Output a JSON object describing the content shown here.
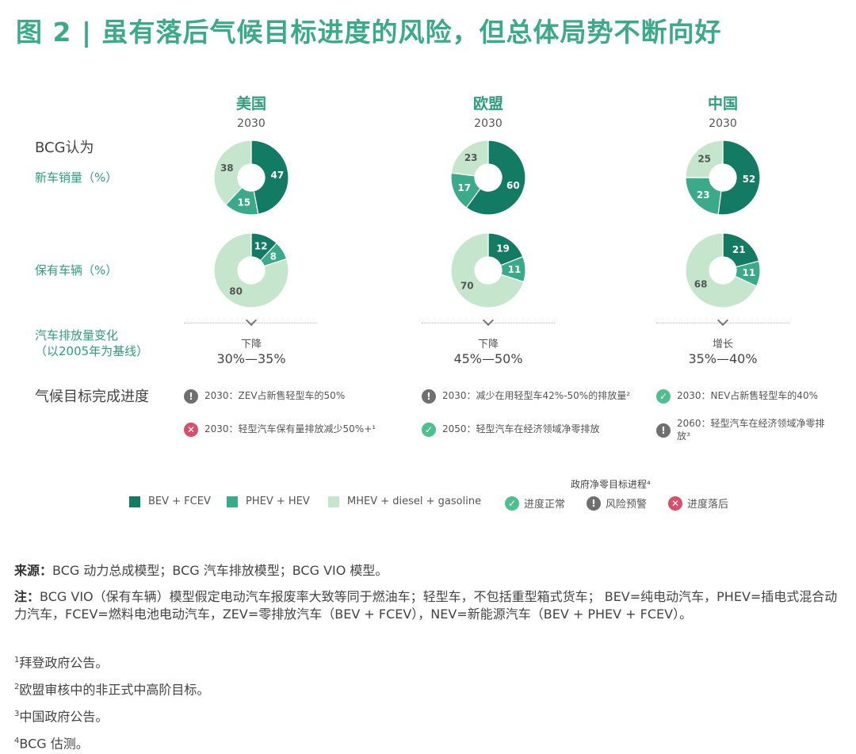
{
  "title": "图 2 | 虽有落后气候目标进度的风险，但总体局势不断向好",
  "bcg_label": "BCG认为",
  "row_labels": {
    "new_sales": "新车销量（%）",
    "stock": "保有车辆（%）",
    "emissions_line1": "汽车排放量变化",
    "emissions_line2": "（以2005年为基线）"
  },
  "progress_label": "气候目标完成进度",
  "colors": {
    "bev": "#137a63",
    "phev": "#3aaa8a",
    "mhev": "#c5e6cc",
    "label_dark_bg": "#ffffff",
    "label_light_bg": "#555555"
  },
  "regions": [
    {
      "name": "美国",
      "year": "2030",
      "change_dir": "下降",
      "change_range": "30%—35%"
    },
    {
      "name": "欧盟",
      "year": "2030",
      "change_dir": "下降",
      "change_range": "45%—50%"
    },
    {
      "name": "中国",
      "year": "2030",
      "change_dir": "增长",
      "change_range": "35%—40%"
    }
  ],
  "chart_data": [
    {
      "type": "pie",
      "region": "美国",
      "metric": "新车销量（%）",
      "categories": [
        "BEV + FCEV",
        "PHEV + HEV",
        "MHEV + diesel + gasoline"
      ],
      "values": [
        47,
        15,
        38
      ]
    },
    {
      "type": "pie",
      "region": "欧盟",
      "metric": "新车销量（%）",
      "categories": [
        "BEV + FCEV",
        "PHEV + HEV",
        "MHEV + diesel + gasoline"
      ],
      "values": [
        60,
        17,
        23
      ]
    },
    {
      "type": "pie",
      "region": "中国",
      "metric": "新车销量（%）",
      "categories": [
        "BEV + FCEV",
        "PHEV + HEV",
        "MHEV + diesel + gasoline"
      ],
      "values": [
        52,
        23,
        25
      ]
    },
    {
      "type": "pie",
      "region": "美国",
      "metric": "保有车辆（%）",
      "categories": [
        "BEV + FCEV",
        "PHEV + HEV",
        "MHEV + diesel + gasoline"
      ],
      "values": [
        12,
        8,
        80
      ]
    },
    {
      "type": "pie",
      "region": "欧盟",
      "metric": "保有车辆（%）",
      "categories": [
        "BEV + FCEV",
        "PHEV + HEV",
        "MHEV + diesel + gasoline"
      ],
      "values": [
        19,
        11,
        70
      ]
    },
    {
      "type": "pie",
      "region": "中国",
      "metric": "保有车辆（%）",
      "categories": [
        "BEV + FCEV",
        "PHEV + HEV",
        "MHEV + diesel + gasoline"
      ],
      "values": [
        21,
        11,
        68
      ]
    }
  ],
  "progress_items": [
    {
      "status": "warn",
      "text": "2030：ZEV占新售轻型车的50%"
    },
    {
      "status": "bad",
      "text": "2030：轻型汽车保有量排放减少50%+¹"
    },
    {
      "status": "warn",
      "text": "2030：减少在用轻型车42%-50%的排放量²"
    },
    {
      "status": "ok",
      "text": "2050：轻型汽车在经济领域净零排放"
    },
    {
      "status": "ok",
      "text": "2030：NEV占新售轻型车的40%"
    },
    {
      "status": "warn",
      "text": "2060：轻型汽车在经济领域净零排放³"
    }
  ],
  "status_icons": {
    "ok": "✓",
    "warn": "!",
    "bad": "✕"
  },
  "legend": {
    "bev": "BEV + FCEV",
    "phev": "PHEV + HEV",
    "mhev": "MHEV + diesel + gasoline",
    "gov_title": "政府净零目标进程⁴",
    "ok": "进度正常",
    "warn": "风险预警",
    "bad": "进度落后"
  },
  "footer": {
    "source_label": "来源：",
    "source_text": "BCG 动力总成模型；BCG 汽车排放模型；BCG VIO 模型。",
    "note_label": "注：",
    "note_text": "BCG VIO（保有车辆）模型假定电动汽车报废率大致等同于燃油车；轻型车，不包括重型箱式货车； BEV=纯电动汽车，PHEV=插电式混合动力汽车，FCEV=燃料电池电动汽车，ZEV=零排放汽车（BEV + FCEV），NEV=新能源汽车（BEV + PHEV + FCEV）。",
    "fn1_mark": "1",
    "fn1": "拜登政府公告。",
    "fn2_mark": "2",
    "fn2": "欧盟审核中的非正式中高阶目标。",
    "fn3_mark": "3",
    "fn3": "中国政府公告。",
    "fn4_mark": "4",
    "fn4": "BCG 估测。"
  }
}
